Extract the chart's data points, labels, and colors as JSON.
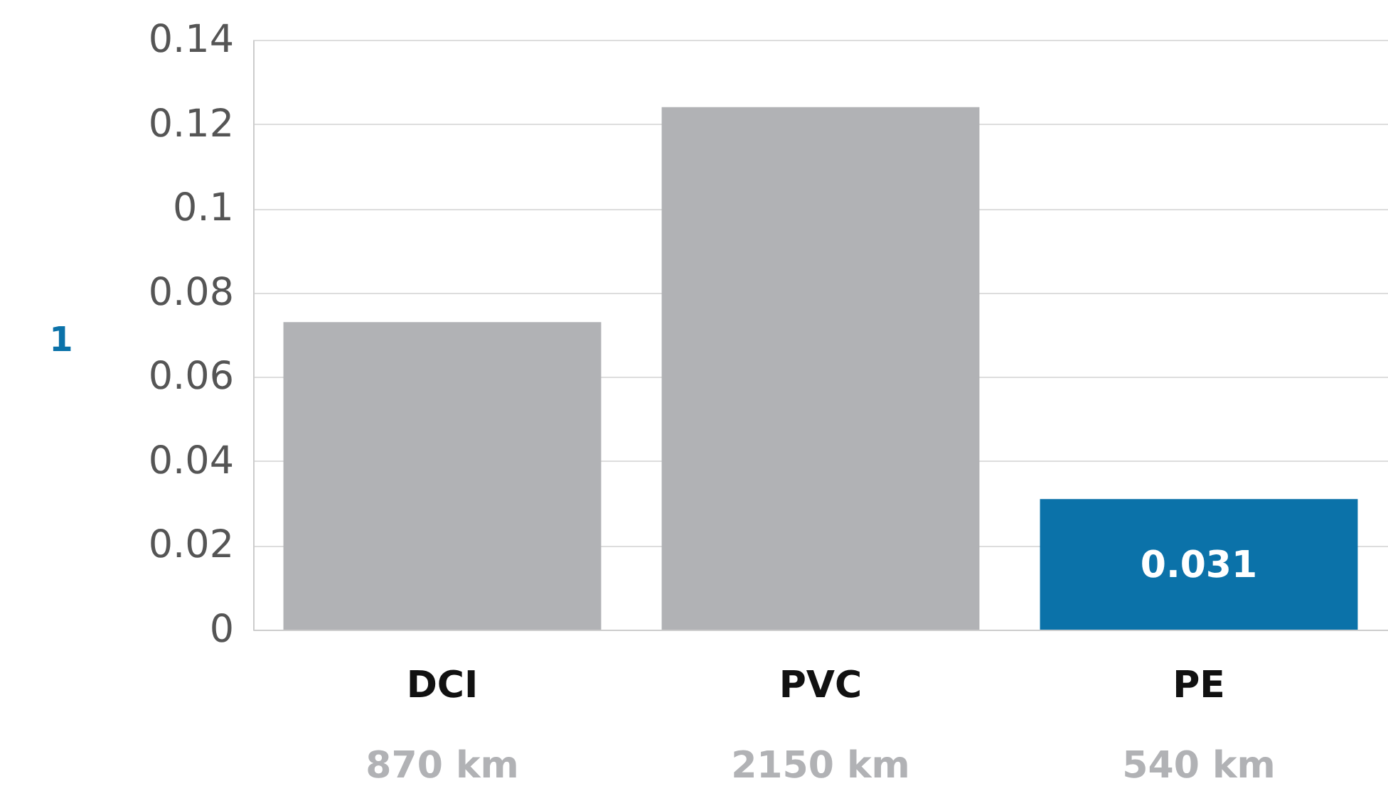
{
  "chart_data": {
    "type": "bar",
    "categories": [
      "DCI",
      "PVC",
      "PE"
    ],
    "values": [
      0.073,
      0.124,
      0.031
    ],
    "colors": [
      "#b1b2b5",
      "#b1b2b5",
      "#0b72a9"
    ],
    "value_labels": [
      null,
      null,
      "0.031"
    ],
    "ylim": [
      0,
      0.14
    ],
    "yticks": [
      0,
      0.02,
      0.04,
      0.06,
      0.08,
      0.1,
      0.12,
      0.14
    ],
    "grid": "y",
    "annotations": [
      "870 km",
      "2150 km",
      "540 km",
      "1"
    ]
  }
}
